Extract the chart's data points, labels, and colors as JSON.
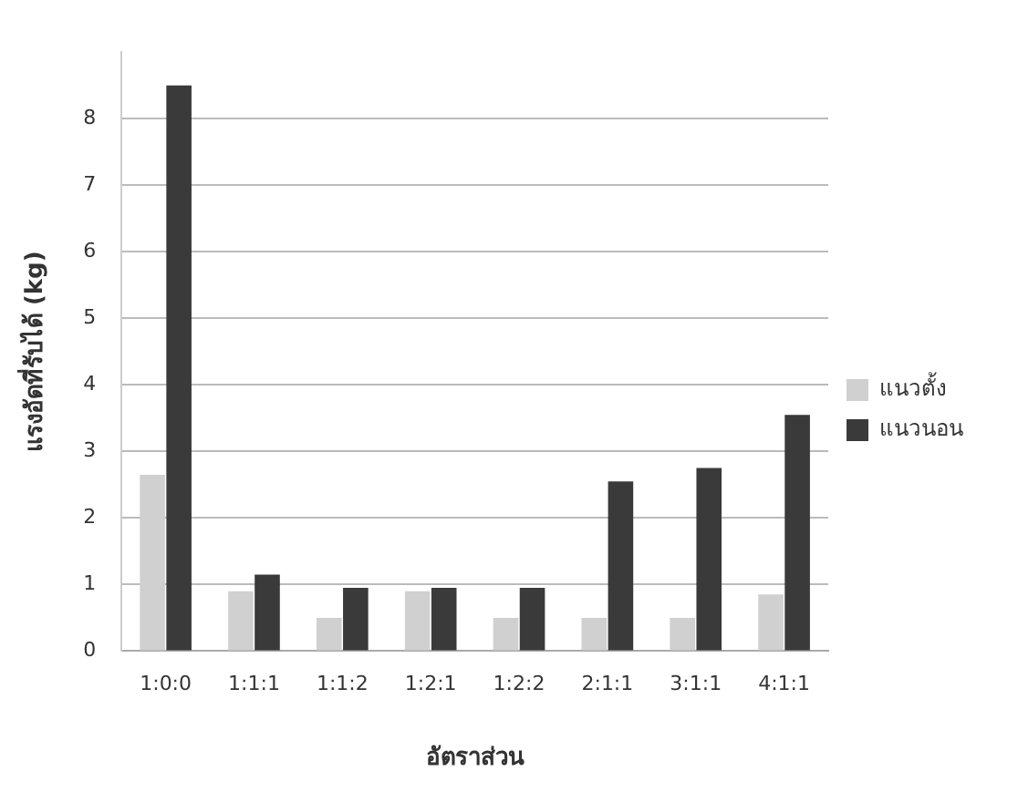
{
  "chart_data": {
    "type": "bar",
    "xlabel": "อัตราส่วน",
    "ylabel": "แรงอัดที่รับได้ (kg)",
    "categories": [
      "1:0:0",
      "1:1:1",
      "1:1:2",
      "1:2:1",
      "1:2:2",
      "2:1:1",
      "3:1:1",
      "4:1:1"
    ],
    "series": [
      {
        "name": "แนวตั้ง",
        "color": "#d0d0d0",
        "values": [
          2.65,
          0.9,
          0.5,
          0.9,
          0.5,
          0.5,
          0.5,
          0.85
        ]
      },
      {
        "name": "แนวนอน",
        "color": "#3a3a3a",
        "values": [
          8.5,
          1.15,
          0.95,
          0.95,
          0.95,
          2.55,
          2.75,
          3.55
        ]
      }
    ],
    "ylim": [
      0,
      9
    ],
    "yticks": [
      0,
      1,
      2,
      3,
      4,
      5,
      6,
      7,
      8
    ],
    "grid": "y",
    "legend": "right"
  }
}
